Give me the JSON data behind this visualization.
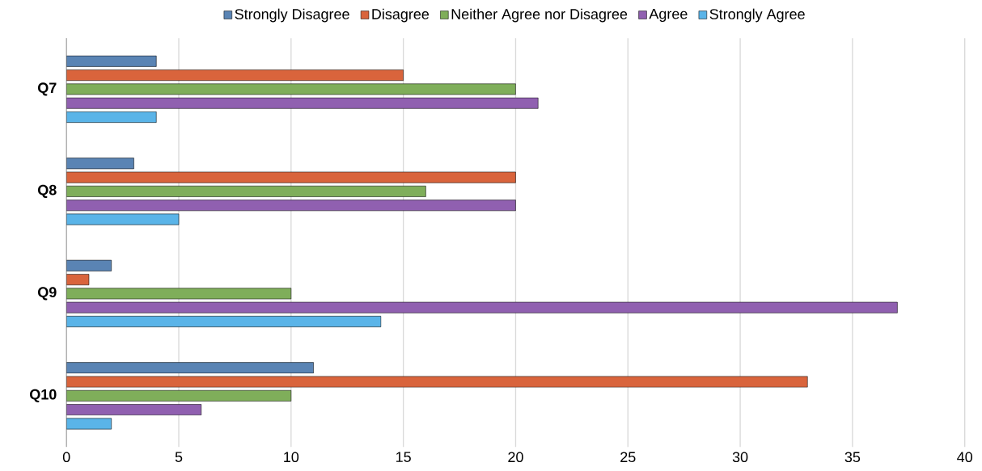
{
  "chart_data": {
    "type": "bar",
    "orientation": "horizontal",
    "categories": [
      "Q7",
      "Q8",
      "Q9",
      "Q10"
    ],
    "series": [
      {
        "name": "Strongly Disagree",
        "color": "#5a84b4",
        "values": [
          4,
          3,
          2,
          11
        ]
      },
      {
        "name": "Disagree",
        "color": "#d9643c",
        "values": [
          15,
          20,
          1,
          33
        ]
      },
      {
        "name": "Neither Agree nor Disagree",
        "color": "#7fae5a",
        "values": [
          20,
          16,
          10,
          10
        ]
      },
      {
        "name": "Agree",
        "color": "#9060b0",
        "values": [
          21,
          20,
          37,
          6
        ]
      },
      {
        "name": "Strongly Agree",
        "color": "#5ab4e8",
        "values": [
          4,
          5,
          14,
          2
        ]
      }
    ],
    "xlim": [
      0,
      40
    ],
    "xticks": [
      0,
      5,
      10,
      15,
      20,
      25,
      30,
      35,
      40
    ],
    "grid": "x",
    "legend": "top"
  }
}
